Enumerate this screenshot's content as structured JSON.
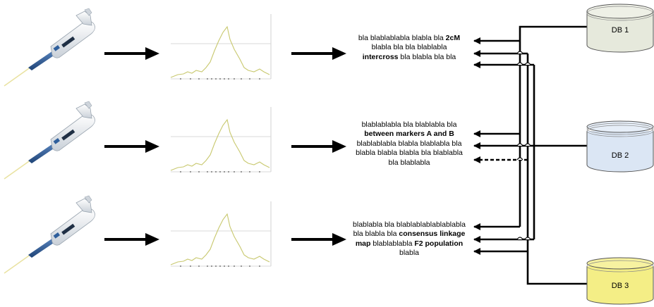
{
  "rows": [
    {
      "name": "row-1",
      "text_segments": [
        {
          "text": "bla blablablabla blabla bla ",
          "bold": false
        },
        {
          "text": "2cM",
          "bold": true
        },
        {
          "text": " blabla bla bla blablabla ",
          "bold": false
        },
        {
          "text": "intercross",
          "bold": true
        },
        {
          "text": " bla blabla bla bla",
          "bold": false
        }
      ]
    },
    {
      "name": "row-2",
      "text_segments": [
        {
          "text": "blablablabla bla blablabla bla ",
          "bold": false
        },
        {
          "text": "between markers A and B",
          "bold": true
        },
        {
          "text": " blablablabla blabla blablabla bla blabla blabla blabla bla blablabla bla blablabla",
          "bold": false
        }
      ]
    },
    {
      "name": "row-3",
      "text_segments": [
        {
          "text": "blablabla bla blablablablablablabla bla blabla bla ",
          "bold": false
        },
        {
          "text": "consensus linkage map",
          "bold": true
        },
        {
          "text": " blablablabla ",
          "bold": false
        },
        {
          "text": "F2 population",
          "bold": true
        },
        {
          "text": " blabla",
          "bold": false
        }
      ]
    }
  ],
  "databases": [
    {
      "label": "DB 1",
      "fill": "#e6e9dc",
      "top": "#eef0e6"
    },
    {
      "label": "DB 2",
      "fill": "#dbe6f4",
      "top": "#e6eef8"
    },
    {
      "label": "DB 3",
      "fill": "#f4ee86",
      "top": "#f7f2a0"
    }
  ],
  "colors": {
    "curve": "#c8c86e",
    "pipette_body": "#f2f4f6",
    "pipette_grip": "#2f5f9c",
    "arrow": "#000000"
  },
  "connectors": [
    {
      "from": "DB 1",
      "to_row": 1,
      "to_slot": 1,
      "style": "solid"
    },
    {
      "from": "DB 1",
      "to_row": 2,
      "to_slot": 1,
      "style": "solid"
    },
    {
      "from": "DB 1",
      "to_row": 3,
      "to_slot": 1,
      "style": "solid"
    },
    {
      "from": "DB 2",
      "to_row": 1,
      "to_slot": 2,
      "style": "solid"
    },
    {
      "from": "DB 2",
      "to_row": 2,
      "to_slot": 2,
      "style": "solid"
    },
    {
      "from": "DB 2",
      "to_row": 3,
      "to_slot": 2,
      "style": "solid"
    },
    {
      "from": "DB 3",
      "to_row": 1,
      "to_slot": 3,
      "style": "solid"
    },
    {
      "from": "DB 3",
      "to_row": 2,
      "to_slot": 3,
      "style": "dashed"
    },
    {
      "from": "DB 3",
      "to_row": 3,
      "to_slot": 3,
      "style": "solid"
    }
  ]
}
